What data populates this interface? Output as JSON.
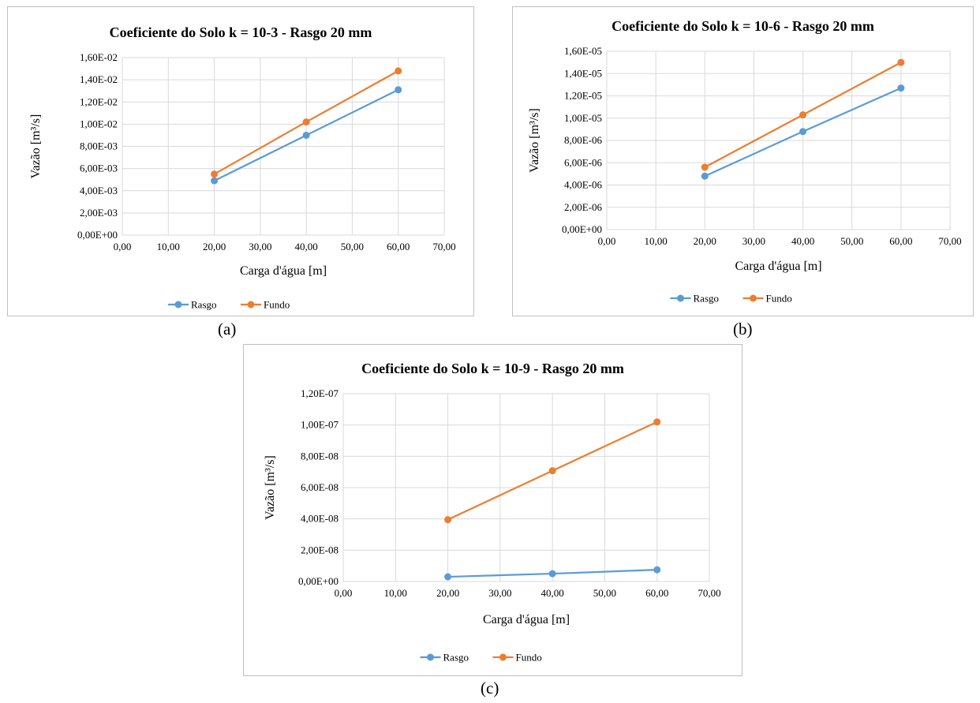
{
  "captions": {
    "a": "(a)",
    "b": "(b)",
    "c": "(c)"
  },
  "chart_data": [
    {
      "id": "a",
      "type": "line",
      "title": "Coeficiente  do Solo k = 10-3 - Rasgo 20 mm",
      "xlabel": "Carga d'água [m]",
      "ylabel": "Vazão [m³/s]",
      "xlim": [
        0,
        70
      ],
      "ylim": [
        0,
        0.016
      ],
      "xticks": [
        0,
        10,
        20,
        30,
        40,
        50,
        60,
        70
      ],
      "xtick_labels": [
        "0,00",
        "10,00",
        "20,00",
        "30,00",
        "40,00",
        "50,00",
        "60,00",
        "70,00"
      ],
      "yticks": [
        0,
        0.002,
        0.004,
        0.006,
        0.008,
        0.01,
        0.012,
        0.014,
        0.016
      ],
      "ytick_labels": [
        "0,00E+00",
        "2,00E-03",
        "4,00E-03",
        "6,00E-03",
        "8,00E-03",
        "1,00E-02",
        "1,20E-02",
        "1,40E-02",
        "1,60E-02"
      ],
      "grid": true,
      "legend": "bottom",
      "x": [
        20,
        40,
        60
      ],
      "series": [
        {
          "name": "Rasgo",
          "color": "#5b9bd5",
          "values": [
            0.0049,
            0.009,
            0.0131
          ]
        },
        {
          "name": "Fundo",
          "color": "#ed7d31",
          "values": [
            0.0055,
            0.0102,
            0.0148
          ]
        }
      ]
    },
    {
      "id": "b",
      "type": "line",
      "title": "Coeficiente  do Solo k = 10-6 - Rasgo 20 mm",
      "xlabel": "Carga d'água [m]",
      "ylabel": "Vazão [m³/s]",
      "xlim": [
        0,
        70
      ],
      "ylim": [
        0,
        1.6e-05
      ],
      "xticks": [
        0,
        10,
        20,
        30,
        40,
        50,
        60,
        70
      ],
      "xtick_labels": [
        "0,00",
        "10,00",
        "20,00",
        "30,00",
        "40,00",
        "50,00",
        "60,00",
        "70,00"
      ],
      "yticks": [
        0,
        2e-06,
        4e-06,
        6e-06,
        8e-06,
        1e-05,
        1.2e-05,
        1.4e-05,
        1.6e-05
      ],
      "ytick_labels": [
        "0,00E+00",
        "2,00E-06",
        "4,00E-06",
        "6,00E-06",
        "8,00E-06",
        "1,00E-05",
        "1,20E-05",
        "1,40E-05",
        "1,60E-05"
      ],
      "grid": true,
      "legend": "bottom",
      "x": [
        20,
        40,
        60
      ],
      "series": [
        {
          "name": "Rasgo",
          "color": "#5b9bd5",
          "values": [
            4.8e-06,
            8.8e-06,
            1.27e-05
          ]
        },
        {
          "name": "Fundo",
          "color": "#ed7d31",
          "values": [
            5.6e-06,
            1.03e-05,
            1.5e-05
          ]
        }
      ]
    },
    {
      "id": "c",
      "type": "line",
      "title": "Coeficiente  do Solo k = 10-9 - Rasgo 20 mm",
      "xlabel": "Carga d'água [m]",
      "ylabel": "Vazão [m³/s]",
      "xlim": [
        0,
        70
      ],
      "ylim": [
        0,
        1.2e-07
      ],
      "xticks": [
        0,
        10,
        20,
        30,
        40,
        50,
        60,
        70
      ],
      "xtick_labels": [
        "0,00",
        "10,00",
        "20,00",
        "30,00",
        "40,00",
        "50,00",
        "60,00",
        "70,00"
      ],
      "yticks": [
        0,
        2e-08,
        4e-08,
        6e-08,
        8e-08,
        1e-07,
        1.2e-07
      ],
      "ytick_labels": [
        "0,00E+00",
        "2,00E-08",
        "4,00E-08",
        "6,00E-08",
        "8,00E-08",
        "1,00E-07",
        "1,20E-07"
      ],
      "grid": true,
      "legend": "bottom",
      "x": [
        20,
        40,
        60
      ],
      "series": [
        {
          "name": "Rasgo",
          "color": "#5b9bd5",
          "values": [
            3e-09,
            5e-09,
            7.5e-09
          ]
        },
        {
          "name": "Fundo",
          "color": "#ed7d31",
          "values": [
            3.95e-08,
            7.08e-08,
            1.02e-07
          ]
        }
      ]
    }
  ]
}
